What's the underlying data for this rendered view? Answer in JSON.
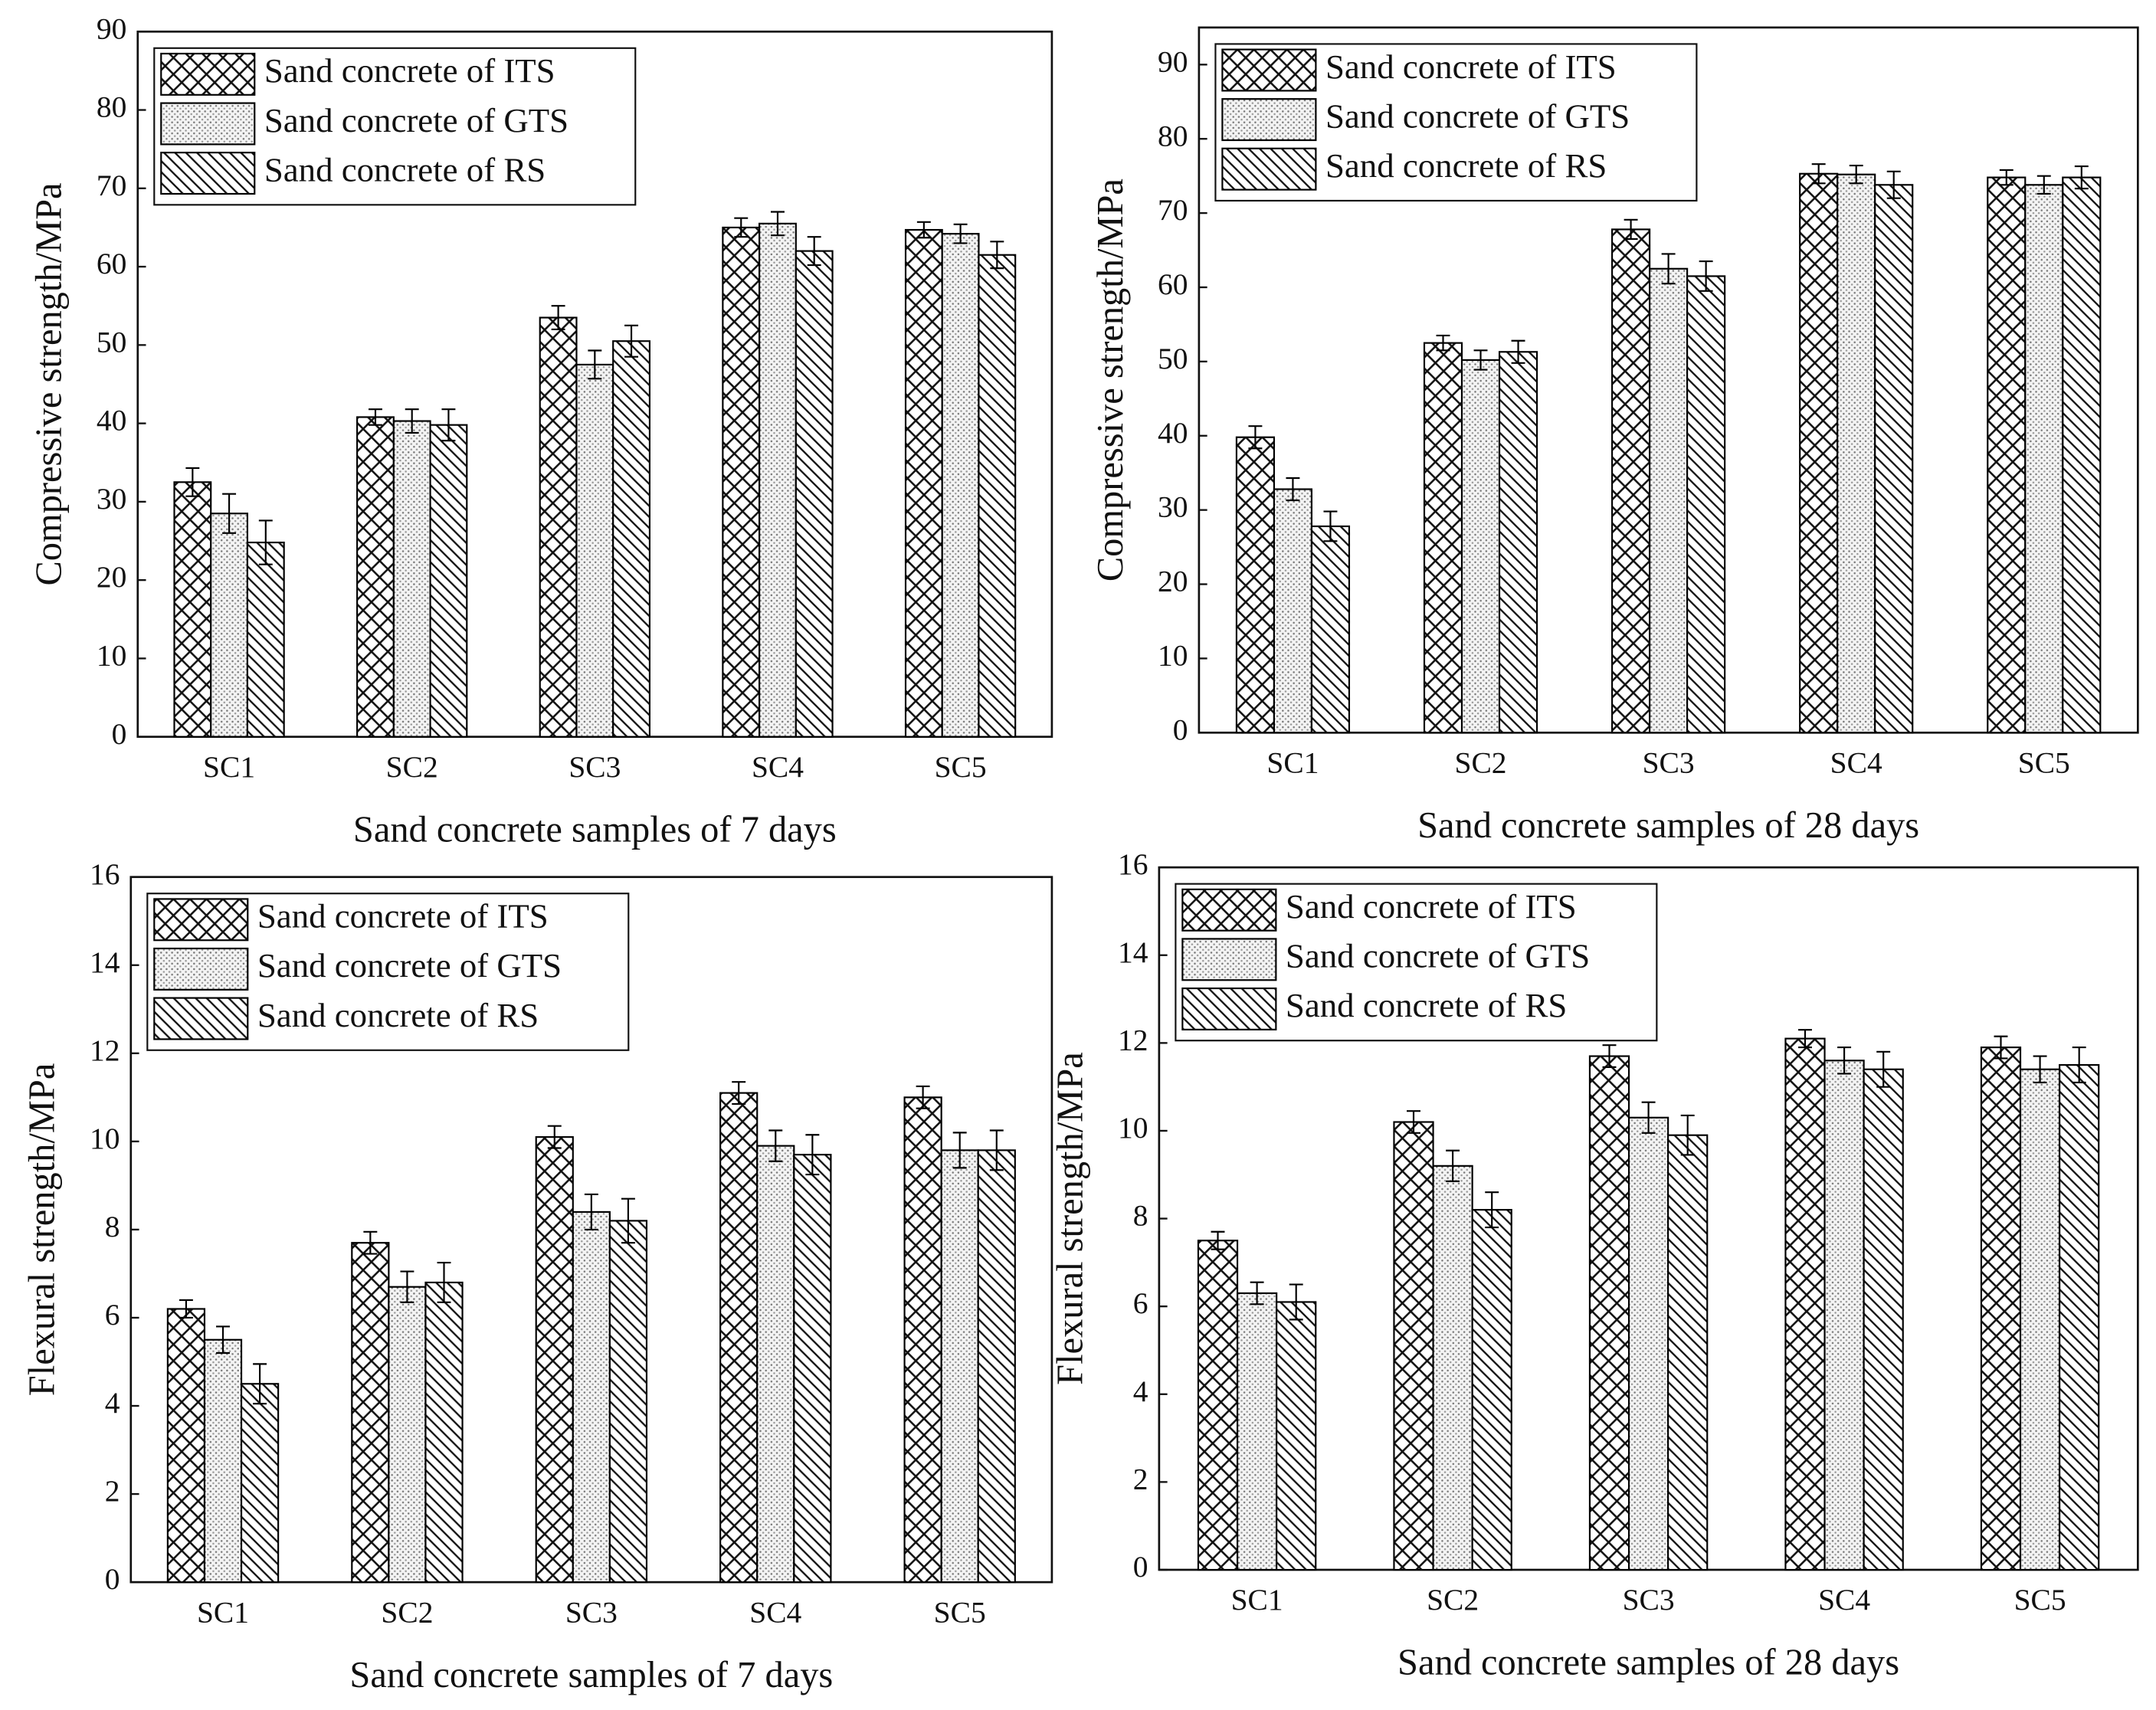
{
  "chart_data": [
    {
      "type": "bar",
      "xlabel": "Sand concrete samples of 7 days",
      "ylabel": "Compressive strength/MPa",
      "categories": [
        "SC1",
        "SC2",
        "SC3",
        "SC4",
        "SC5"
      ],
      "series": [
        {
          "name": "Sand concrete of ITS",
          "color": "#000000",
          "pattern": "crosshatch",
          "values": [
            32.5,
            40.8,
            53.5,
            65,
            64.7
          ],
          "errors": [
            1.8,
            1,
            1.5,
            1.2,
            1
          ]
        },
        {
          "name": "Sand concrete of GTS",
          "color": "#000000",
          "pattern": "dots",
          "values": [
            28.5,
            40.3,
            47.5,
            65.5,
            64.2
          ],
          "errors": [
            2.5,
            1.5,
            1.8,
            1.5,
            1.2
          ]
        },
        {
          "name": "Sand concrete of RS",
          "color": "#000000",
          "pattern": "hatch",
          "values": [
            24.8,
            39.8,
            50.5,
            62,
            61.5
          ],
          "errors": [
            2.8,
            2,
            2,
            1.8,
            1.7
          ]
        }
      ],
      "ylim": [
        0,
        90
      ],
      "yticks": [
        0,
        10,
        20,
        30,
        40,
        50,
        60,
        70,
        80,
        90
      ],
      "legend": "upper left"
    },
    {
      "type": "bar",
      "xlabel": "Sand concrete samples of 28 days",
      "ylabel": "Compressive strength/MPa",
      "categories": [
        "SC1",
        "SC2",
        "SC3",
        "SC4",
        "SC5"
      ],
      "series": [
        {
          "name": "Sand concrete of ITS",
          "color": "#000000",
          "pattern": "crosshatch",
          "values": [
            39.8,
            52.5,
            67.8,
            75.3,
            74.8
          ],
          "errors": [
            1.5,
            1,
            1.3,
            1.3,
            1
          ]
        },
        {
          "name": "Sand concrete of GTS",
          "color": "#000000",
          "pattern": "dots",
          "values": [
            32.8,
            50.2,
            62.5,
            75.2,
            73.8
          ],
          "errors": [
            1.5,
            1.3,
            2,
            1.2,
            1.2
          ]
        },
        {
          "name": "Sand concrete of RS",
          "color": "#000000",
          "pattern": "hatch",
          "values": [
            27.8,
            51.3,
            61.5,
            73.8,
            74.8
          ],
          "errors": [
            2,
            1.5,
            2,
            1.8,
            1.5
          ]
        }
      ],
      "ylim": [
        0,
        95
      ],
      "yticks": [
        0,
        10,
        20,
        30,
        40,
        50,
        60,
        70,
        80,
        90
      ],
      "legend": "upper left"
    },
    {
      "type": "bar",
      "xlabel": "Sand concrete samples of 7 days",
      "ylabel": "Flexural strength/MPa",
      "categories": [
        "SC1",
        "SC2",
        "SC3",
        "SC4",
        "SC5"
      ],
      "series": [
        {
          "name": "Sand concrete of ITS",
          "color": "#000000",
          "pattern": "crosshatch",
          "values": [
            6.2,
            7.7,
            10.1,
            11.1,
            11.0
          ],
          "errors": [
            0.2,
            0.25,
            0.25,
            0.25,
            0.25
          ]
        },
        {
          "name": "Sand concrete of GTS",
          "color": "#000000",
          "pattern": "dots",
          "values": [
            5.5,
            6.7,
            8.4,
            9.9,
            9.8
          ],
          "errors": [
            0.3,
            0.35,
            0.4,
            0.35,
            0.4
          ]
        },
        {
          "name": "Sand concrete of RS",
          "color": "#000000",
          "pattern": "hatch",
          "values": [
            4.5,
            6.8,
            8.2,
            9.7,
            9.8
          ],
          "errors": [
            0.45,
            0.45,
            0.5,
            0.45,
            0.45
          ]
        }
      ],
      "ylim": [
        0,
        16
      ],
      "yticks": [
        0,
        2,
        4,
        6,
        8,
        10,
        12,
        14,
        16
      ],
      "legend": "upper left"
    },
    {
      "type": "bar",
      "xlabel": "Sand concrete samples of 28 days",
      "ylabel": "Flexural strength/MPa",
      "categories": [
        "SC1",
        "SC2",
        "SC3",
        "SC4",
        "SC5"
      ],
      "series": [
        {
          "name": "Sand concrete of ITS",
          "color": "#000000",
          "pattern": "crosshatch",
          "values": [
            7.5,
            10.2,
            11.7,
            12.1,
            11.9
          ],
          "errors": [
            0.2,
            0.25,
            0.25,
            0.2,
            0.25
          ]
        },
        {
          "name": "Sand concrete of GTS",
          "color": "#000000",
          "pattern": "dots",
          "values": [
            6.3,
            9.2,
            10.3,
            11.6,
            11.4
          ],
          "errors": [
            0.25,
            0.35,
            0.35,
            0.3,
            0.3
          ]
        },
        {
          "name": "Sand concrete of RS",
          "color": "#000000",
          "pattern": "hatch",
          "values": [
            6.1,
            8.2,
            9.9,
            11.4,
            11.5
          ],
          "errors": [
            0.4,
            0.4,
            0.45,
            0.4,
            0.4
          ]
        }
      ],
      "ylim": [
        0,
        16
      ],
      "yticks": [
        0,
        2,
        4,
        6,
        8,
        10,
        12,
        14,
        16
      ],
      "legend": "upper left"
    }
  ]
}
